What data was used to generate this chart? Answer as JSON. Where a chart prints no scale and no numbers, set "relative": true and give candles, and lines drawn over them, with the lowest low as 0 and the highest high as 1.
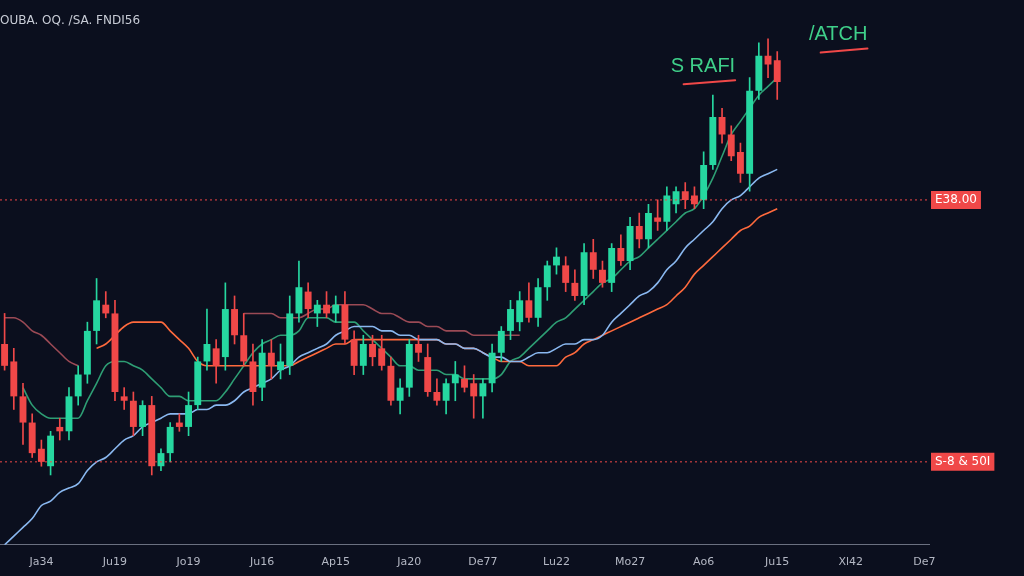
{
  "chart_data": {
    "type": "candlestick",
    "title": "OUBA. OQ. /SA. FNDI56",
    "relative": true,
    "tick_labels": "x",
    "grid": false,
    "legend": false,
    "categories": [
      null,
      null,
      null,
      null,
      "Ja34",
      null,
      null,
      null,
      null,
      null,
      null,
      null,
      "Ju19",
      null,
      null,
      null,
      null,
      null,
      null,
      null,
      "Jo19",
      null,
      null,
      null,
      null,
      null,
      null,
      null,
      "Ju16",
      null,
      null,
      null,
      null,
      null,
      null,
      null,
      "Ap15",
      null,
      null,
      null,
      null,
      null,
      null,
      null,
      "Ja20",
      null,
      null,
      null,
      null,
      null,
      null,
      null,
      "De77",
      null,
      null,
      null,
      null,
      null,
      null,
      null,
      "Lu22",
      null,
      null,
      null,
      null,
      null,
      null,
      null,
      "Mo27",
      null,
      null,
      null,
      null,
      null,
      null,
      null,
      "Ao6",
      null,
      null,
      null,
      null,
      null,
      null,
      null,
      "Ju15",
      null,
      null,
      null,
      null,
      null,
      null,
      null,
      "Xl42",
      null,
      null,
      null,
      null,
      null,
      null,
      null,
      "De7"
    ],
    "ohlc": [
      [
        0.3,
        0.37,
        0.24,
        0.25
      ],
      [
        0.26,
        0.29,
        0.15,
        0.18
      ],
      [
        0.18,
        0.21,
        0.07,
        0.12
      ],
      [
        0.12,
        0.14,
        0.04,
        0.05
      ],
      [
        0.06,
        0.08,
        0.02,
        0.03
      ],
      [
        0.02,
        0.1,
        0.0,
        0.09
      ],
      [
        0.11,
        0.13,
        0.08,
        0.1
      ],
      [
        0.1,
        0.2,
        0.08,
        0.18
      ],
      [
        0.18,
        0.25,
        0.16,
        0.23
      ],
      [
        0.23,
        0.35,
        0.21,
        0.33
      ],
      [
        0.33,
        0.45,
        0.3,
        0.4
      ],
      [
        0.39,
        0.42,
        0.36,
        0.37
      ],
      [
        0.37,
        0.4,
        0.17,
        0.19
      ],
      [
        0.18,
        0.2,
        0.15,
        0.17
      ],
      [
        0.17,
        0.19,
        0.09,
        0.11
      ],
      [
        0.11,
        0.17,
        0.09,
        0.16
      ],
      [
        0.16,
        0.18,
        0.0,
        0.02
      ],
      [
        0.02,
        0.06,
        0.01,
        0.05
      ],
      [
        0.05,
        0.12,
        0.03,
        0.11
      ],
      [
        0.12,
        0.14,
        0.1,
        0.11
      ],
      [
        0.11,
        0.19,
        0.09,
        0.16
      ],
      [
        0.16,
        0.27,
        0.15,
        0.26
      ],
      [
        0.26,
        0.38,
        0.24,
        0.3
      ],
      [
        0.29,
        0.31,
        0.21,
        0.25
      ],
      [
        0.27,
        0.44,
        0.24,
        0.38
      ],
      [
        0.38,
        0.41,
        0.3,
        0.32
      ],
      [
        0.32,
        0.37,
        0.25,
        0.26
      ],
      [
        0.26,
        0.3,
        0.16,
        0.19
      ],
      [
        0.2,
        0.31,
        0.17,
        0.28
      ],
      [
        0.28,
        0.31,
        0.22,
        0.25
      ],
      [
        0.24,
        0.3,
        0.22,
        0.26
      ],
      [
        0.25,
        0.41,
        0.23,
        0.37
      ],
      [
        0.37,
        0.49,
        0.35,
        0.43
      ],
      [
        0.42,
        0.44,
        0.36,
        0.38
      ],
      [
        0.37,
        0.4,
        0.34,
        0.39
      ],
      [
        0.39,
        0.42,
        0.36,
        0.37
      ],
      [
        0.37,
        0.41,
        0.35,
        0.39
      ],
      [
        0.39,
        0.42,
        0.3,
        0.31
      ],
      [
        0.31,
        0.33,
        0.23,
        0.25
      ],
      [
        0.25,
        0.32,
        0.23,
        0.3
      ],
      [
        0.3,
        0.32,
        0.25,
        0.27
      ],
      [
        0.29,
        0.32,
        0.24,
        0.25
      ],
      [
        0.25,
        0.27,
        0.16,
        0.17
      ],
      [
        0.17,
        0.22,
        0.14,
        0.2
      ],
      [
        0.2,
        0.31,
        0.18,
        0.3
      ],
      [
        0.3,
        0.32,
        0.26,
        0.28
      ],
      [
        0.27,
        0.3,
        0.18,
        0.19
      ],
      [
        0.19,
        0.22,
        0.16,
        0.17
      ],
      [
        0.17,
        0.22,
        0.14,
        0.21
      ],
      [
        0.21,
        0.26,
        0.17,
        0.23
      ],
      [
        0.22,
        0.25,
        0.19,
        0.2
      ],
      [
        0.21,
        0.23,
        0.13,
        0.18
      ],
      [
        0.18,
        0.22,
        0.13,
        0.21
      ],
      [
        0.21,
        0.3,
        0.19,
        0.28
      ],
      [
        0.28,
        0.34,
        0.26,
        0.33
      ],
      [
        0.33,
        0.4,
        0.31,
        0.38
      ],
      [
        0.35,
        0.42,
        0.33,
        0.4
      ],
      [
        0.4,
        0.44,
        0.35,
        0.36
      ],
      [
        0.36,
        0.45,
        0.34,
        0.43
      ],
      [
        0.43,
        0.49,
        0.4,
        0.48
      ],
      [
        0.48,
        0.52,
        0.46,
        0.5
      ],
      [
        0.48,
        0.5,
        0.42,
        0.44
      ],
      [
        0.44,
        0.47,
        0.4,
        0.41
      ],
      [
        0.41,
        0.53,
        0.39,
        0.51
      ],
      [
        0.51,
        0.54,
        0.45,
        0.47
      ],
      [
        0.47,
        0.49,
        0.43,
        0.44
      ],
      [
        0.44,
        0.53,
        0.42,
        0.52
      ],
      [
        0.52,
        0.55,
        0.48,
        0.49
      ],
      [
        0.49,
        0.59,
        0.47,
        0.57
      ],
      [
        0.57,
        0.6,
        0.52,
        0.54
      ],
      [
        0.54,
        0.62,
        0.52,
        0.6
      ],
      [
        0.59,
        0.63,
        0.56,
        0.58
      ],
      [
        0.58,
        0.66,
        0.56,
        0.64
      ],
      [
        0.62,
        0.66,
        0.6,
        0.65
      ],
      [
        0.65,
        0.67,
        0.61,
        0.63
      ],
      [
        0.64,
        0.66,
        0.61,
        0.62
      ],
      [
        0.63,
        0.74,
        0.61,
        0.71
      ],
      [
        0.71,
        0.87,
        0.7,
        0.82
      ],
      [
        0.82,
        0.84,
        0.76,
        0.78
      ],
      [
        0.78,
        0.8,
        0.72,
        0.73
      ],
      [
        0.74,
        0.76,
        0.67,
        0.69
      ],
      [
        0.69,
        0.91,
        0.65,
        0.88
      ],
      [
        0.88,
        0.99,
        0.86,
        0.96
      ],
      [
        0.96,
        1.0,
        0.91,
        0.94
      ],
      [
        0.95,
        0.97,
        0.86,
        0.9
      ],
      null,
      null,
      null,
      null,
      null,
      null,
      null,
      null,
      null,
      null,
      null,
      null,
      null,
      null,
      null,
      null
    ],
    "series": [
      {
        "type": "line",
        "color": "#8ab8f0",
        "values": [
          -0.16,
          -0.14,
          -0.12,
          -0.1,
          -0.07,
          -0.06,
          -0.04,
          -0.03,
          -0.02,
          0.01,
          0.03,
          0.04,
          0.06,
          0.08,
          0.09,
          0.11,
          0.12,
          0.13,
          0.14,
          0.14,
          0.14,
          0.15,
          0.15,
          0.16,
          0.16,
          0.17,
          0.19,
          0.2,
          0.21,
          0.22,
          0.24,
          0.25,
          0.27,
          0.28,
          0.29,
          0.3,
          0.32,
          0.33,
          0.34,
          0.34,
          0.34,
          0.33,
          0.33,
          0.32,
          0.32,
          0.31,
          0.31,
          0.31,
          0.3,
          0.3,
          0.29,
          0.29,
          0.28,
          0.27,
          0.27,
          0.26,
          0.26,
          0.27,
          0.28,
          0.28,
          0.29,
          0.3,
          0.3,
          0.31,
          0.31,
          0.32,
          0.35,
          0.37,
          0.39,
          0.41,
          0.42,
          0.44,
          0.47,
          0.49,
          0.52,
          0.54,
          0.56,
          0.58,
          0.61,
          0.63,
          0.64,
          0.66,
          0.68,
          0.69,
          0.7,
          null,
          null,
          null,
          null,
          null,
          null,
          null,
          null,
          null,
          null,
          null,
          null,
          null,
          null,
          null,
          null
        ]
      },
      {
        "type": "line",
        "color": "#ff6a3d",
        "values": [
          null,
          null,
          null,
          null,
          null,
          null,
          null,
          null,
          null,
          null,
          0.29,
          0.3,
          0.32,
          0.34,
          0.35,
          0.35,
          0.35,
          0.35,
          0.33,
          0.31,
          0.29,
          0.26,
          0.25,
          0.25,
          0.25,
          0.25,
          0.25,
          0.25,
          0.25,
          0.25,
          0.25,
          0.25,
          0.26,
          0.27,
          0.28,
          0.29,
          0.3,
          0.3,
          0.31,
          0.31,
          0.31,
          0.31,
          0.31,
          0.31,
          0.31,
          0.31,
          0.31,
          0.31,
          0.3,
          0.3,
          0.29,
          0.29,
          0.28,
          0.27,
          0.26,
          0.26,
          0.26,
          0.25,
          0.25,
          0.25,
          0.25,
          0.27,
          0.28,
          0.3,
          0.31,
          0.32,
          0.33,
          0.34,
          0.35,
          0.36,
          0.37,
          0.38,
          0.39,
          0.41,
          0.43,
          0.46,
          0.48,
          0.5,
          0.52,
          0.54,
          0.56,
          0.57,
          0.59,
          0.6,
          0.61,
          null,
          null,
          null,
          null,
          null,
          null,
          null,
          null,
          null,
          null,
          null,
          null,
          null,
          null,
          null,
          null
        ]
      },
      {
        "type": "line",
        "color": "#9b4a55",
        "values": [
          0.36,
          0.36,
          0.35,
          0.33,
          0.32,
          0.3,
          0.28,
          0.26,
          0.25,
          null,
          null,
          null,
          null,
          null,
          null,
          null,
          null,
          null,
          null,
          null,
          null,
          null,
          null,
          null,
          null,
          null,
          0.37,
          0.37,
          0.37,
          0.37,
          0.36,
          0.36,
          0.36,
          0.37,
          0.38,
          0.38,
          0.39,
          0.39,
          0.39,
          0.39,
          0.38,
          0.37,
          0.37,
          0.36,
          0.35,
          0.35,
          0.34,
          0.34,
          0.33,
          0.33,
          0.33,
          0.32,
          0.32,
          0.32,
          0.32,
          0.32,
          0.32,
          null,
          null,
          null,
          null,
          null,
          null,
          null,
          null,
          null,
          null,
          null,
          null,
          null,
          null,
          null,
          null,
          null,
          null,
          null,
          null,
          null,
          null,
          null,
          null,
          null,
          null,
          null,
          null,
          null,
          null,
          null,
          null,
          null,
          null,
          null,
          null,
          null,
          null,
          null,
          null,
          null,
          null,
          null,
          null
        ]
      },
      {
        "type": "line",
        "color": "#2e9e74",
        "values": [
          null,
          null,
          0.2,
          0.16,
          0.14,
          0.13,
          0.13,
          0.13,
          0.13,
          0.17,
          0.21,
          0.25,
          0.26,
          0.26,
          0.25,
          0.24,
          0.22,
          0.2,
          0.18,
          0.18,
          0.17,
          0.17,
          0.17,
          0.17,
          0.19,
          0.22,
          0.25,
          0.28,
          0.3,
          0.31,
          0.32,
          0.32,
          0.33,
          0.36,
          0.36,
          0.36,
          0.35,
          0.35,
          0.35,
          0.33,
          0.31,
          0.29,
          0.27,
          0.25,
          0.25,
          0.24,
          0.24,
          0.24,
          0.23,
          0.23,
          0.22,
          0.22,
          0.22,
          0.22,
          0.23,
          0.26,
          0.27,
          0.29,
          0.31,
          0.33,
          0.35,
          0.36,
          0.38,
          0.4,
          0.42,
          0.44,
          0.45,
          0.47,
          0.49,
          0.5,
          0.52,
          0.54,
          0.56,
          0.58,
          0.6,
          0.61,
          0.64,
          0.68,
          0.73,
          0.78,
          0.81,
          0.84,
          0.87,
          0.89,
          0.91,
          null,
          null,
          null,
          null,
          null,
          null,
          null,
          null,
          null,
          null,
          null,
          null,
          null,
          null,
          null,
          null
        ]
      }
    ],
    "ref_lines": [
      {
        "axis": "y",
        "value": 0.63,
        "label": "E38.00",
        "color": "#f04848",
        "line_style": "dotted"
      },
      {
        "axis": "y",
        "value": 0.03,
        "label": "S-8 & 50I",
        "color": "#f04848",
        "line_style": "dotted"
      }
    ],
    "annotations": [
      "S RAFI",
      "/ATCH"
    ]
  }
}
